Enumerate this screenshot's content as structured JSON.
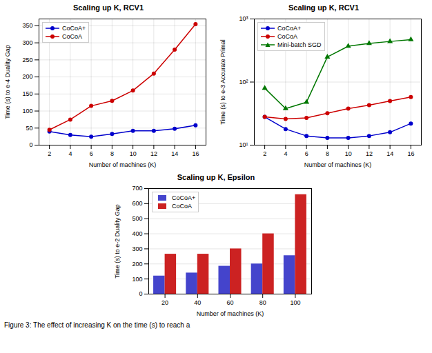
{
  "chart_data": [
    {
      "type": "line",
      "title": "Scaling up K, RCV1",
      "xlabel": "Number of machines (K)",
      "ylabel": "Time (s) to e-4 Duality Gap",
      "x": [
        2,
        4,
        6,
        8,
        10,
        12,
        14,
        16
      ],
      "series": [
        {
          "name": "CoCoA+",
          "color": "#0000CC",
          "marker": "circle",
          "values": [
            40,
            30,
            25,
            33,
            42,
            42,
            48,
            58
          ]
        },
        {
          "name": "CoCoA",
          "color": "#CC0000",
          "marker": "circle",
          "values": [
            45,
            75,
            115,
            130,
            160,
            210,
            280,
            355
          ]
        }
      ],
      "xlim": [
        1,
        17
      ],
      "ylim": [
        0,
        370
      ],
      "xticks": [
        2,
        4,
        6,
        8,
        10,
        12,
        14,
        16
      ],
      "yticks": [
        0,
        50,
        100,
        150,
        200,
        250,
        300,
        350
      ],
      "grid": true,
      "legend": "upper left"
    },
    {
      "type": "line",
      "title": "Scaling up K, RCV1",
      "xlabel": "Number of machines (K)",
      "ylabel": "Time (s) to e-3 Accurate Primal",
      "x": [
        2,
        4,
        6,
        8,
        10,
        12,
        14,
        16
      ],
      "series": [
        {
          "name": "CoCoA+",
          "color": "#0000CC",
          "marker": "circle",
          "values": [
            28,
            18,
            14,
            13,
            13,
            14,
            16,
            22
          ]
        },
        {
          "name": "CoCoA",
          "color": "#CC0000",
          "marker": "circle",
          "values": [
            28,
            26,
            27,
            32,
            38,
            43,
            50,
            58
          ]
        },
        {
          "name": "Mini-batch SGD",
          "color": "#007700",
          "marker": "triangle",
          "values": [
            80,
            38,
            48,
            250,
            370,
            410,
            440,
            470
          ]
        }
      ],
      "log": "y",
      "xlim": [
        1,
        17
      ],
      "ylim": [
        10,
        1000
      ],
      "xticks": [
        2,
        4,
        6,
        8,
        10,
        12,
        14,
        16
      ],
      "yticks": [
        {
          "value": 10,
          "label": "10¹"
        },
        {
          "value": 100,
          "label": "10²"
        },
        {
          "value": 1000,
          "label": "10³"
        }
      ],
      "grid": true,
      "legend": "upper left"
    },
    {
      "type": "bar",
      "title": "Scaling up K, Epsilon",
      "xlabel": "Number of machines (K)",
      "ylabel": "Time (s) to e-2 Duality Gap",
      "x": [
        20,
        40,
        60,
        80,
        100
      ],
      "series": [
        {
          "name": "CoCoA+",
          "color": "#4444CC",
          "values": [
            120,
            140,
            185,
            200,
            255
          ]
        },
        {
          "name": "CoCoA",
          "color": "#CC2222",
          "values": [
            265,
            265,
            300,
            400,
            660
          ]
        }
      ],
      "xlim": [
        10,
        110
      ],
      "ylim": [
        0,
        700
      ],
      "xticks": [
        20,
        40,
        60,
        80,
        100
      ],
      "yticks": [
        0,
        100,
        200,
        300,
        400,
        500,
        600,
        700
      ],
      "grid": "y",
      "legend": "upper left"
    }
  ],
  "caption": "Figure 3: The effect of increasing K on the time (s) to reach a"
}
